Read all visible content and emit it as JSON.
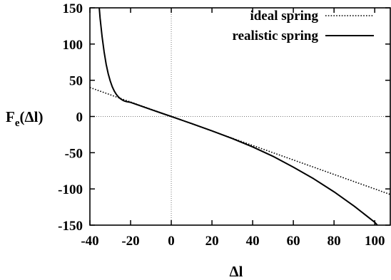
{
  "chart_data": {
    "type": "line",
    "title": "",
    "xlabel": "Δl",
    "ylabel": {
      "base": "F",
      "sub": "e",
      "tail": "(Δl)"
    },
    "xlim": [
      -40,
      108
    ],
    "ylim": [
      -150,
      150
    ],
    "xticks": [
      "-40",
      "-20",
      "0",
      "20",
      "40",
      "60",
      "80",
      "100"
    ],
    "yticks": [
      "150",
      "100",
      "50",
      "0",
      "-50",
      "-100",
      "-150"
    ],
    "zero_lines": {
      "x": 0,
      "y": 0,
      "style": "dotted"
    },
    "legend_position": "top-right",
    "series": [
      {
        "name": "ideal spring",
        "style": "dotted",
        "x": [
          -40,
          108
        ],
        "y": [
          40,
          -108
        ]
      },
      {
        "name": "realistic spring",
        "style": "solid",
        "x": [
          -35.4,
          -35,
          -34,
          -33,
          -32,
          -31,
          -30,
          -29,
          -28,
          -27,
          -26,
          -25,
          -24,
          -23,
          -22,
          -21,
          -20,
          -15,
          -10,
          -5,
          0,
          10,
          20,
          30,
          40,
          50,
          60,
          70,
          80,
          90,
          100,
          101.3
        ],
        "y": [
          150,
          136,
          110,
          89,
          72,
          59,
          49,
          41,
          35,
          30.5,
          27,
          24.5,
          22.7,
          21.3,
          20.5,
          20,
          19.5,
          14.6,
          9.7,
          4.8,
          0,
          -9.8,
          -19.8,
          -30.4,
          -42,
          -55,
          -70,
          -86,
          -104,
          -124,
          -146,
          -150
        ]
      }
    ]
  }
}
